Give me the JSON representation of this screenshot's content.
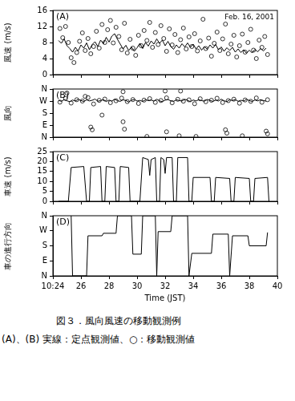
{
  "caption": {
    "title": "図３．風向風速の移動観測例",
    "note": "(A)、(B) 実線：定点観測値、○：移動観測値"
  },
  "chart_data": [
    {
      "type": "line",
      "title": "(A)",
      "annotation": "Feb. 16, 2001",
      "ylabel": "風速 (m/s)",
      "xlim": [
        24,
        40
      ],
      "xticks": [
        {
          "value": 24,
          "label": "10:24"
        },
        26,
        28,
        30,
        32,
        34,
        36,
        38,
        40
      ],
      "ylim": [
        0,
        16
      ],
      "yticks": [
        0,
        4,
        8,
        12,
        16
      ],
      "grid": false,
      "tick_labels": "y",
      "series": [
        {
          "type": "line",
          "color": "#000000",
          "marker": "none",
          "line_style": "solid",
          "x": [
            24.4,
            24.6,
            24.8,
            25.0,
            25.2,
            25.4,
            25.6,
            25.8,
            26.0,
            26.2,
            26.4,
            26.6,
            26.8,
            27.0,
            27.2,
            27.4,
            27.6,
            27.8,
            28.0,
            28.2,
            28.4,
            28.6,
            28.8,
            29.0,
            29.2,
            29.4,
            29.6,
            29.8,
            30.0,
            30.2,
            30.4,
            30.6,
            30.8,
            31.0,
            31.2,
            31.4,
            31.6,
            31.8,
            32.0,
            32.2,
            32.4,
            32.6,
            32.8,
            33.0,
            33.2,
            33.4,
            33.6,
            33.8,
            34.0,
            34.2,
            34.4,
            34.6,
            34.8,
            35.0,
            35.2,
            35.4,
            35.6,
            35.8,
            36.0,
            36.2,
            36.4,
            36.6,
            36.8,
            37.0,
            37.2,
            37.4,
            37.6,
            37.8,
            38.0,
            38.2,
            38.4,
            38.6,
            38.8,
            39.0,
            39.2
          ],
          "values": [
            8.5,
            7.8,
            8.9,
            7.2,
            6.5,
            5.6,
            6.8,
            5.9,
            7.4,
            6.6,
            7.9,
            6.2,
            7.5,
            8.2,
            7.0,
            8.6,
            7.7,
            9.3,
            8.1,
            9.6,
            10.2,
            8.8,
            7.6,
            6.4,
            7.3,
            6.0,
            6.9,
            5.8,
            6.7,
            7.8,
            6.5,
            8.0,
            7.1,
            8.4,
            7.6,
            8.9,
            7.8,
            8.6,
            7.2,
            8.3,
            7.0,
            6.3,
            7.4,
            6.6,
            7.7,
            6.9,
            7.9,
            6.8,
            7.6,
            6.4,
            7.2,
            6.1,
            7.0,
            6.3,
            7.4,
            6.6,
            7.5,
            6.2,
            6.9,
            5.8,
            6.7,
            6.0,
            6.8,
            5.6,
            6.4,
            5.5,
            6.2,
            5.3,
            6.1,
            5.4,
            6.3,
            5.7,
            6.5,
            5.9,
            6.6
          ]
        },
        {
          "type": "scatter",
          "color": "#000000",
          "marker": "circle",
          "line_style": "none",
          "x": [
            24.5,
            24.7,
            24.9,
            25.1,
            25.3,
            25.5,
            25.7,
            25.9,
            26.1,
            26.3,
            26.5,
            26.7,
            26.9,
            27.1,
            27.3,
            27.5,
            27.7,
            27.9,
            28.1,
            28.3,
            28.5,
            28.7,
            28.9,
            29.1,
            29.3,
            29.5,
            29.7,
            29.9,
            30.1,
            30.3,
            30.5,
            30.7,
            30.9,
            31.1,
            31.3,
            31.5,
            31.7,
            31.9,
            32.1,
            32.3,
            32.5,
            32.7,
            32.9,
            33.1,
            33.3,
            33.5,
            33.7,
            33.9,
            34.1,
            34.3,
            34.5,
            34.7,
            34.9,
            35.1,
            35.3,
            35.5,
            35.7,
            35.9,
            36.1,
            36.3,
            36.5,
            36.7,
            36.9,
            37.1,
            37.3,
            37.5,
            37.7,
            37.9,
            38.1,
            38.3,
            38.5,
            38.7,
            38.9,
            39.1,
            39.3
          ],
          "values": [
            11.5,
            9.2,
            12.0,
            8.0,
            4.2,
            3.0,
            5.5,
            8.3,
            10.4,
            6.0,
            9.0,
            5.2,
            7.0,
            10.8,
            6.6,
            12.5,
            8.0,
            11.2,
            13.5,
            7.9,
            11.8,
            9.5,
            6.2,
            12.8,
            5.4,
            8.8,
            6.6,
            4.8,
            9.8,
            7.2,
            11.0,
            8.5,
            13.0,
            6.8,
            10.5,
            7.5,
            12.2,
            9.0,
            5.8,
            11.4,
            7.4,
            10.0,
            5.5,
            8.7,
            11.6,
            6.4,
            9.4,
            7.0,
            10.2,
            5.9,
            8.4,
            13.8,
            6.5,
            9.1,
            4.6,
            7.8,
            10.6,
            6.0,
            8.9,
            12.6,
            5.2,
            7.6,
            9.8,
            4.4,
            7.2,
            10.1,
            5.6,
            8.0,
            11.3,
            6.1,
            4.0,
            8.6,
            6.8,
            9.5,
            5.0
          ]
        }
      ]
    },
    {
      "type": "line",
      "title": "(B)",
      "ylabel": "風向",
      "xlim": [
        24,
        40
      ],
      "xticks": [
        {
          "value": 24,
          "label": "10:24"
        },
        26,
        28,
        30,
        32,
        34,
        36,
        38,
        40
      ],
      "ylim": [
        0,
        360
      ],
      "yticks": [
        {
          "value": 0,
          "label": "N"
        },
        {
          "value": 90,
          "label": "E"
        },
        {
          "value": 180,
          "label": "S"
        },
        {
          "value": 270,
          "label": "W"
        },
        {
          "value": 360,
          "label": "N"
        }
      ],
      "grid": false,
      "tick_labels": "y",
      "series": [
        {
          "type": "line",
          "color": "#000000",
          "marker": "none",
          "line_style": "solid",
          "x": [
            24.4,
            24.6,
            24.8,
            25.0,
            25.2,
            25.4,
            25.6,
            25.8,
            26.0,
            26.2,
            26.4,
            26.6,
            26.8,
            27.0,
            27.2,
            27.4,
            27.6,
            27.8,
            28.0,
            28.2,
            28.4,
            28.6,
            28.8,
            29.0,
            29.2,
            29.4,
            29.6,
            29.8,
            30.0,
            30.2,
            30.4,
            30.6,
            30.8,
            31.0,
            31.2,
            31.4,
            31.6,
            31.8,
            32.0,
            32.2,
            32.4,
            32.6,
            32.8,
            33.0,
            33.2,
            33.4,
            33.6,
            33.8,
            34.0,
            34.2,
            34.4,
            34.6,
            34.8,
            35.0,
            35.2,
            35.4,
            35.6,
            35.8,
            36.0,
            36.2,
            36.4,
            36.6,
            36.8,
            37.0,
            37.2,
            37.4,
            37.6,
            37.8,
            38.0,
            38.2,
            38.4,
            38.6,
            38.8,
            39.0,
            39.2
          ],
          "values": [
            275,
            268,
            280,
            272,
            265,
            278,
            270,
            283,
            274,
            267,
            279,
            271,
            276,
            285,
            269,
            273,
            281,
            266,
            277,
            270,
            284,
            272,
            268,
            279,
            274,
            263,
            276,
            282,
            270,
            275,
            267,
            280,
            273,
            278,
            269,
            284,
            271,
            266,
            277,
            281,
            272,
            268,
            279,
            274,
            270,
            283,
            276,
            265,
            278,
            271,
            280,
            273,
            269,
            282,
            275,
            267,
            277,
            270,
            284,
            272,
            266,
            279,
            274,
            281,
            268,
            276,
            270,
            283,
            273,
            267,
            278,
            271,
            280,
            274,
            269
          ]
        },
        {
          "type": "scatter",
          "color": "#000000",
          "marker": "circle",
          "line_style": "none",
          "x": [
            24.5,
            24.9,
            25.3,
            25.7,
            26.1,
            26.5,
            26.9,
            27.3,
            27.7,
            28.1,
            28.5,
            28.9,
            29.3,
            29.7,
            30.1,
            30.5,
            30.9,
            31.3,
            31.7,
            32.1,
            32.5,
            32.9,
            33.3,
            33.7,
            34.1,
            34.5,
            34.9,
            35.3,
            35.7,
            36.1,
            36.5,
            36.9,
            37.3,
            37.7,
            38.1,
            38.5,
            38.9,
            39.3,
            25.0,
            26.3,
            26.7,
            26.8,
            27.5,
            29.0,
            29.1,
            29.0,
            30.7,
            32.0,
            32.1,
            33.0,
            33.1,
            34.2,
            36.3,
            36.4,
            37.5,
            39.2,
            39.3
          ],
          "values": [
            262,
            290,
            255,
            280,
            270,
            296,
            248,
            275,
            285,
            258,
            272,
            292,
            266,
            281,
            252,
            277,
            288,
            260,
            274,
            294,
            257,
            283,
            269,
            279,
            250,
            287,
            265,
            276,
            291,
            259,
            273,
            284,
            254,
            278,
            268,
            293,
            261,
            280,
            330,
            305,
            75,
            55,
            165,
            115,
            60,
            340,
            5,
            345,
            40,
            10,
            345,
            5,
            55,
            30,
            10,
            45,
            25
          ]
        }
      ]
    },
    {
      "type": "line",
      "title": "(C)",
      "ylabel": "車速 (m/s)",
      "xlim": [
        24,
        40
      ],
      "xticks": [
        {
          "value": 24,
          "label": "10:24"
        },
        26,
        28,
        30,
        32,
        34,
        36,
        38,
        40
      ],
      "ylim": [
        0,
        25
      ],
      "yticks": [
        0,
        5,
        10,
        15,
        20,
        25
      ],
      "grid": false,
      "tick_labels": "y",
      "series": [
        {
          "type": "line",
          "color": "#000000",
          "marker": "none",
          "line_style": "solid",
          "x": [
            24.4,
            25.1,
            25.3,
            26.2,
            26.4,
            26.6,
            26.7,
            27.4,
            27.5,
            27.7,
            27.8,
            28.4,
            28.5,
            28.7,
            28.8,
            29.4,
            29.5,
            30.2,
            30.4,
            30.8,
            30.9,
            31.0,
            31.3,
            31.4,
            31.6,
            31.7,
            31.9,
            32.0,
            32.1,
            32.5,
            32.6,
            32.8,
            32.9,
            33.6,
            33.7,
            33.9,
            34.0,
            35.2,
            35.3,
            35.5,
            35.6,
            36.6,
            36.7,
            36.9,
            37.0,
            38.0,
            38.1,
            38.3,
            38.4,
            39.3,
            39.4
          ],
          "values": [
            0,
            0,
            17,
            17.5,
            0,
            0,
            17,
            17.5,
            0,
            0,
            17.5,
            17,
            0,
            0,
            17.5,
            17,
            0,
            0,
            22,
            21,
            13,
            21,
            22,
            0,
            0,
            22,
            21,
            14,
            22,
            22,
            0,
            0,
            22,
            22,
            0,
            0,
            12,
            12,
            0,
            0,
            12,
            11.5,
            0,
            0,
            12,
            11.5,
            0,
            0,
            11.5,
            12,
            0
          ]
        }
      ]
    },
    {
      "type": "line",
      "title": "(D)",
      "ylabel": "車の進行方向",
      "xlabel": "Time (JST)",
      "xlim": [
        24,
        40
      ],
      "xticks": [
        {
          "value": 24,
          "label": "10:24"
        },
        26,
        28,
        30,
        32,
        34,
        36,
        38,
        40
      ],
      "ylim": [
        0,
        360
      ],
      "yticks": [
        {
          "value": 0,
          "label": "N"
        },
        {
          "value": 90,
          "label": "E"
        },
        {
          "value": 180,
          "label": "S"
        },
        {
          "value": 270,
          "label": "W"
        },
        {
          "value": 360,
          "label": "N"
        }
      ],
      "grid": false,
      "series": [
        {
          "type": "line",
          "color": "#000000",
          "marker": "none",
          "line_style": "solid",
          "x": [
            25.3,
            25.4,
            26.4,
            26.5,
            27.5,
            27.6,
            28.5,
            28.6,
            29.6,
            29.7,
            30.3,
            30.4,
            31.3,
            31.4,
            31.5,
            32.4,
            32.5,
            33.6,
            33.7,
            33.9,
            35.3,
            35.4,
            36.5,
            36.6,
            36.8,
            37.9,
            38.0,
            39.2,
            39.3
          ],
          "values": [
            360,
            0,
            0,
            240,
            240,
            255,
            255,
            360,
            360,
            130,
            130,
            360,
            360,
            0,
            265,
            265,
            360,
            360,
            0,
            135,
            135,
            250,
            250,
            0,
            240,
            240,
            180,
            180,
            260
          ]
        }
      ]
    }
  ]
}
